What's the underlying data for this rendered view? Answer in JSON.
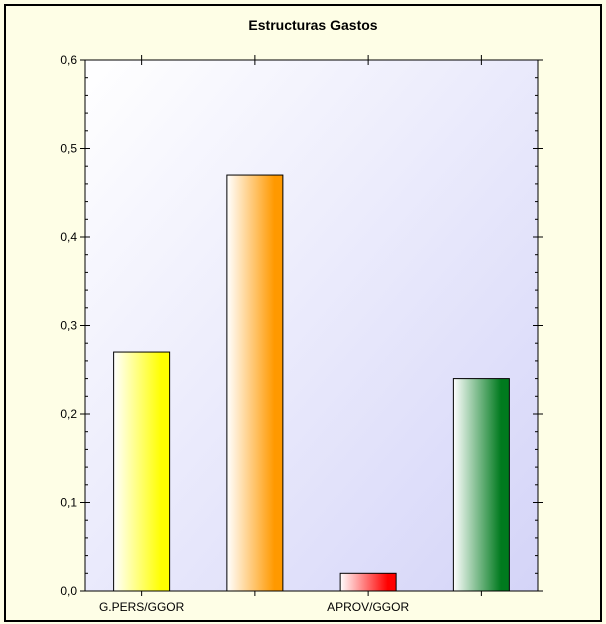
{
  "chart_data": {
    "type": "bar",
    "title": "Estructuras Gastos",
    "xlabel": "",
    "ylabel": "",
    "ylim": [
      0,
      0.6
    ],
    "yticks": [
      "0,0",
      "0,1",
      "0,2",
      "0,3",
      "0,4",
      "0,5",
      "0,6"
    ],
    "categories": [
      "G.PERS/GGOR",
      "",
      "APROV/GGOR",
      ""
    ],
    "values": [
      0.27,
      0.47,
      0.02,
      0.24
    ],
    "colors": [
      "#ffff00",
      "#ff9900",
      "#ff0000",
      "#007a1e"
    ],
    "plot_background": [
      "#ffffff",
      "#d4d4f8"
    ],
    "grid": false,
    "legend": "none"
  }
}
